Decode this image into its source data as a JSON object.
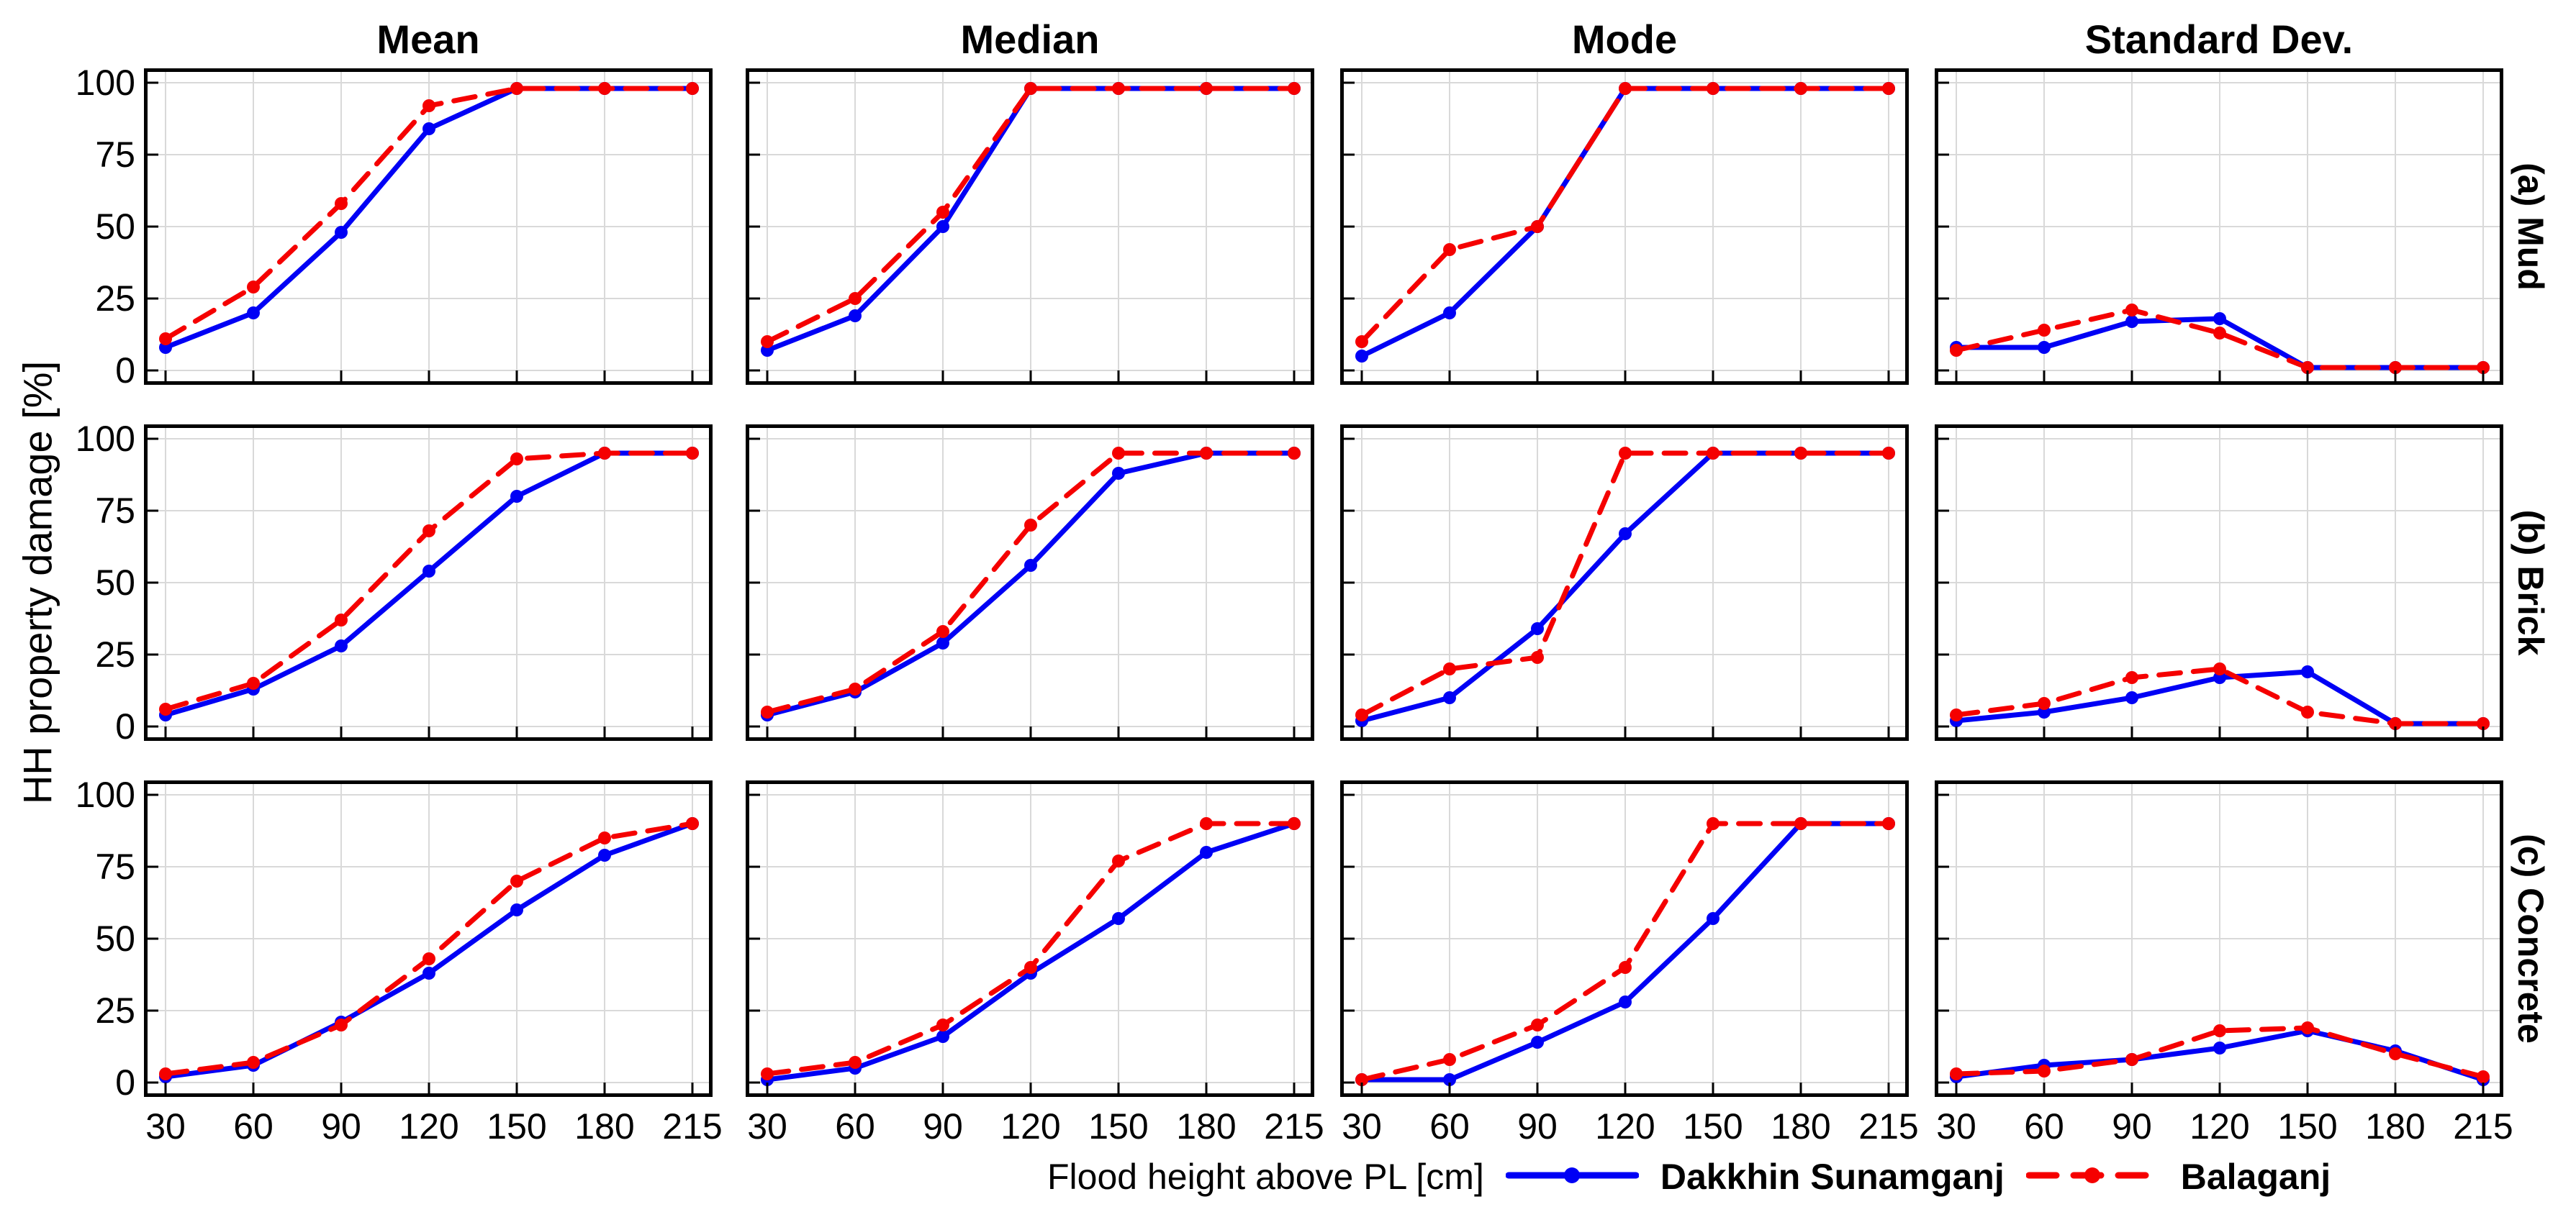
{
  "figure": {
    "ylabel": "HH property damage [%]",
    "xlabel": "Flood height above PL [cm]",
    "col_titles": [
      "Mean",
      "Median",
      "Mode",
      "Standard Dev."
    ],
    "row_labels": [
      "(a) Mud",
      "(b) Brick",
      "(c) Concrete"
    ],
    "colors": {
      "dakkhin_sunamganj": "#0000f5",
      "balaganj": "#f50000",
      "grid": "#d9d9d9",
      "frame": "#000000"
    },
    "legend": [
      {
        "name": "Dakkhin Sunamganj",
        "style": "solid",
        "marker": "circle",
        "color": "#0000f5"
      },
      {
        "name": "Balaganj",
        "style": "dashed",
        "marker": "circle",
        "color": "#f50000"
      }
    ]
  },
  "chart_data": [
    {
      "type": "line",
      "row": "(a) Mud",
      "col": "Mean",
      "x": [
        30,
        60,
        90,
        120,
        150,
        180,
        215
      ],
      "xlabel": "Flood height above PL [cm]",
      "ylabel": "HH property damage [%]",
      "ylim": [
        0,
        100
      ],
      "yticks": [
        0,
        25,
        50,
        75,
        100
      ],
      "grid": true,
      "series": [
        {
          "name": "Dakkhin Sunamganj",
          "values": [
            8,
            20,
            48,
            84,
            98,
            98,
            98
          ]
        },
        {
          "name": "Balaganj",
          "values": [
            11,
            29,
            58,
            92,
            98,
            98,
            98
          ]
        }
      ]
    },
    {
      "type": "line",
      "row": "(a) Mud",
      "col": "Median",
      "x": [
        30,
        60,
        90,
        120,
        150,
        180,
        215
      ],
      "ylim": [
        0,
        100
      ],
      "yticks": [
        0,
        25,
        50,
        75,
        100
      ],
      "grid": true,
      "series": [
        {
          "name": "Dakkhin Sunamganj",
          "values": [
            7,
            19,
            50,
            98,
            98,
            98,
            98
          ]
        },
        {
          "name": "Balaganj",
          "values": [
            10,
            25,
            55,
            98,
            98,
            98,
            98
          ]
        }
      ]
    },
    {
      "type": "line",
      "row": "(a) Mud",
      "col": "Mode",
      "x": [
        30,
        60,
        90,
        120,
        150,
        180,
        215
      ],
      "ylim": [
        0,
        100
      ],
      "yticks": [
        0,
        25,
        50,
        75,
        100
      ],
      "grid": true,
      "series": [
        {
          "name": "Dakkhin Sunamganj",
          "values": [
            5,
            20,
            50,
            98,
            98,
            98,
            98
          ]
        },
        {
          "name": "Balaganj",
          "values": [
            10,
            42,
            50,
            98,
            98,
            98,
            98
          ]
        }
      ]
    },
    {
      "type": "line",
      "row": "(a) Mud",
      "col": "Standard Dev.",
      "x": [
        30,
        60,
        90,
        120,
        150,
        180,
        215
      ],
      "ylim": [
        0,
        100
      ],
      "yticks": [
        0,
        25,
        50,
        75,
        100
      ],
      "grid": true,
      "series": [
        {
          "name": "Dakkhin Sunamganj",
          "values": [
            8,
            8,
            17,
            18,
            1,
            1,
            1
          ]
        },
        {
          "name": "Balaganj",
          "values": [
            7,
            14,
            21,
            13,
            1,
            1,
            1
          ]
        }
      ]
    },
    {
      "type": "line",
      "row": "(b) Brick",
      "col": "Mean",
      "x": [
        30,
        60,
        90,
        120,
        150,
        180,
        215
      ],
      "ylim": [
        0,
        100
      ],
      "yticks": [
        0,
        25,
        50,
        75,
        100
      ],
      "grid": true,
      "series": [
        {
          "name": "Dakkhin Sunamganj",
          "values": [
            4,
            13,
            28,
            54,
            80,
            95,
            95
          ]
        },
        {
          "name": "Balaganj",
          "values": [
            6,
            15,
            37,
            68,
            93,
            95,
            95
          ]
        }
      ]
    },
    {
      "type": "line",
      "row": "(b) Brick",
      "col": "Median",
      "x": [
        30,
        60,
        90,
        120,
        150,
        180,
        215
      ],
      "ylim": [
        0,
        100
      ],
      "yticks": [
        0,
        25,
        50,
        75,
        100
      ],
      "grid": true,
      "series": [
        {
          "name": "Dakkhin Sunamganj",
          "values": [
            4,
            12,
            29,
            56,
            88,
            95,
            95
          ]
        },
        {
          "name": "Balaganj",
          "values": [
            5,
            13,
            33,
            70,
            95,
            95,
            95
          ]
        }
      ]
    },
    {
      "type": "line",
      "row": "(b) Brick",
      "col": "Mode",
      "x": [
        30,
        60,
        90,
        120,
        150,
        180,
        215
      ],
      "ylim": [
        0,
        100
      ],
      "yticks": [
        0,
        25,
        50,
        75,
        100
      ],
      "grid": true,
      "series": [
        {
          "name": "Dakkhin Sunamganj",
          "values": [
            2,
            10,
            34,
            67,
            95,
            95,
            95
          ]
        },
        {
          "name": "Balaganj",
          "values": [
            4,
            20,
            24,
            95,
            95,
            95,
            95
          ]
        }
      ]
    },
    {
      "type": "line",
      "row": "(b) Brick",
      "col": "Standard Dev.",
      "x": [
        30,
        60,
        90,
        120,
        150,
        180,
        215
      ],
      "ylim": [
        0,
        100
      ],
      "yticks": [
        0,
        25,
        50,
        75,
        100
      ],
      "grid": true,
      "series": [
        {
          "name": "Dakkhin Sunamganj",
          "values": [
            2,
            5,
            10,
            17,
            19,
            1,
            1
          ]
        },
        {
          "name": "Balaganj",
          "values": [
            4,
            8,
            17,
            20,
            5,
            1,
            1
          ]
        }
      ]
    },
    {
      "type": "line",
      "row": "(c) Concrete",
      "col": "Mean",
      "x": [
        30,
        60,
        90,
        120,
        150,
        180,
        215
      ],
      "ylim": [
        0,
        100
      ],
      "yticks": [
        0,
        25,
        50,
        75,
        100
      ],
      "grid": true,
      "series": [
        {
          "name": "Dakkhin Sunamganj",
          "values": [
            2,
            6,
            21,
            38,
            60,
            79,
            90
          ]
        },
        {
          "name": "Balaganj",
          "values": [
            3,
            7,
            20,
            43,
            70,
            85,
            90
          ]
        }
      ]
    },
    {
      "type": "line",
      "row": "(c) Concrete",
      "col": "Median",
      "x": [
        30,
        60,
        90,
        120,
        150,
        180,
        215
      ],
      "ylim": [
        0,
        100
      ],
      "yticks": [
        0,
        25,
        50,
        75,
        100
      ],
      "grid": true,
      "series": [
        {
          "name": "Dakkhin Sunamganj",
          "values": [
            1,
            5,
            16,
            38,
            57,
            80,
            90
          ]
        },
        {
          "name": "Balaganj",
          "values": [
            3,
            7,
            20,
            40,
            77,
            90,
            90
          ]
        }
      ]
    },
    {
      "type": "line",
      "row": "(c) Concrete",
      "col": "Mode",
      "x": [
        30,
        60,
        90,
        120,
        150,
        180,
        215
      ],
      "ylim": [
        0,
        100
      ],
      "yticks": [
        0,
        25,
        50,
        75,
        100
      ],
      "grid": true,
      "series": [
        {
          "name": "Dakkhin Sunamganj",
          "values": [
            1,
            1,
            14,
            28,
            57,
            90,
            90
          ]
        },
        {
          "name": "Balaganj",
          "values": [
            1,
            8,
            20,
            40,
            90,
            90,
            90
          ]
        }
      ]
    },
    {
      "type": "line",
      "row": "(c) Concrete",
      "col": "Standard Dev.",
      "x": [
        30,
        60,
        90,
        120,
        150,
        180,
        215
      ],
      "ylim": [
        0,
        100
      ],
      "yticks": [
        0,
        25,
        50,
        75,
        100
      ],
      "grid": true,
      "series": [
        {
          "name": "Dakkhin Sunamganj",
          "values": [
            2,
            6,
            8,
            12,
            18,
            11,
            1
          ]
        },
        {
          "name": "Balaganj",
          "values": [
            3,
            4,
            8,
            18,
            19,
            10,
            2
          ]
        }
      ]
    }
  ]
}
